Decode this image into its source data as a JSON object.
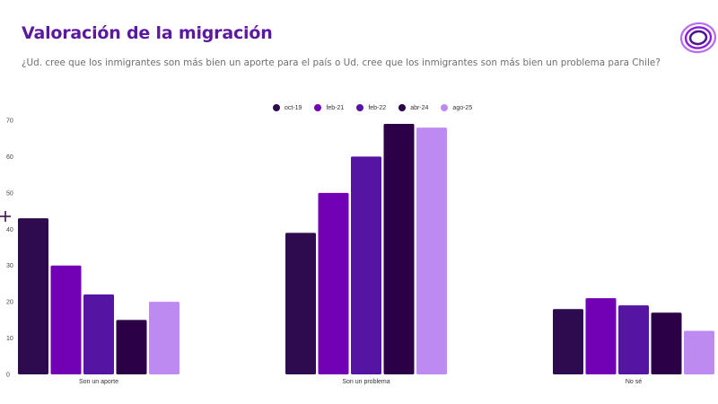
{
  "header": {
    "title": "Valoración de la migración",
    "subtitle": "¿Ud. cree que los inmigrantes son más bien un aporte para el país o Ud. cree que los inmigrantes son más bien un problema para Chile?",
    "logo_icon": "concentric-rings-logo"
  },
  "chart_data": {
    "type": "bar",
    "title": "Valoración de la migración",
    "xlabel": "",
    "ylabel": "",
    "categories": [
      "Son un aporte",
      "Son un problema",
      "No sé"
    ],
    "series": [
      {
        "name": "oct-19",
        "color": "#2e0a4f",
        "values": [
          43,
          39,
          18
        ]
      },
      {
        "name": "feb-21",
        "color": "#7200b5",
        "values": [
          30,
          50,
          21
        ]
      },
      {
        "name": "feb-22",
        "color": "#5614a3",
        "values": [
          22,
          60,
          19
        ]
      },
      {
        "name": "abr-24",
        "color": "#2c0046",
        "values": [
          15,
          69,
          17
        ]
      },
      {
        "name": "ago-25",
        "color": "#bd8af2",
        "values": [
          20,
          68,
          12
        ]
      }
    ],
    "ylim": [
      0,
      70
    ],
    "yticks": [
      0,
      10,
      20,
      30,
      40,
      50,
      60,
      70
    ],
    "grid": false,
    "legend_position": "top-center"
  }
}
